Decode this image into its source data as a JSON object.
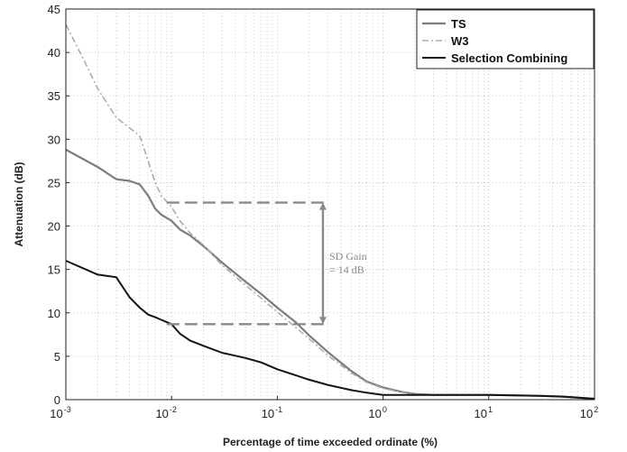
{
  "chart_data": {
    "type": "line",
    "xlabel": "Percentage of time exceeded ordinate (%)",
    "ylabel": "Attenuation (dB)",
    "xscale": "log",
    "xlim": [
      0.001,
      100
    ],
    "ylim": [
      0,
      45
    ],
    "grid": true,
    "legend_position": "top-right",
    "x_ticks": [
      {
        "base": "10",
        "exp": "-3"
      },
      {
        "base": "10",
        "exp": "-2"
      },
      {
        "base": "10",
        "exp": "-1"
      },
      {
        "base": "10",
        "exp": "0"
      },
      {
        "base": "10",
        "exp": "1"
      },
      {
        "base": "10",
        "exp": "2"
      }
    ],
    "y_ticks": [
      "0",
      "5",
      "10",
      "15",
      "20",
      "25",
      "30",
      "35",
      "40",
      "45"
    ],
    "series": [
      {
        "name": "TS",
        "color": "#7d7d7d",
        "style": "solid",
        "points": [
          [
            0.001,
            28.8
          ],
          [
            0.002,
            26.8
          ],
          [
            0.003,
            25.4
          ],
          [
            0.004,
            25.2
          ],
          [
            0.005,
            24.8
          ],
          [
            0.006,
            23.5
          ],
          [
            0.007,
            22.0
          ],
          [
            0.008,
            21.3
          ],
          [
            0.01,
            20.6
          ],
          [
            0.012,
            19.6
          ],
          [
            0.015,
            18.9
          ],
          [
            0.02,
            17.7
          ],
          [
            0.03,
            15.8
          ],
          [
            0.05,
            13.6
          ],
          [
            0.07,
            12.2
          ],
          [
            0.1,
            10.6
          ],
          [
            0.15,
            8.9
          ],
          [
            0.2,
            7.4
          ],
          [
            0.3,
            5.5
          ],
          [
            0.5,
            3.3
          ],
          [
            0.7,
            2.1
          ],
          [
            1.0,
            1.4
          ],
          [
            1.5,
            0.9
          ],
          [
            2.0,
            0.65
          ],
          [
            3.0,
            0.55
          ],
          [
            10,
            0.55
          ],
          [
            30,
            0.45
          ],
          [
            50,
            0.35
          ],
          [
            100,
            0.1
          ]
        ]
      },
      {
        "name": "W3",
        "color": "#adadad",
        "style": "dashdot",
        "points": [
          [
            0.001,
            43.2
          ],
          [
            0.0015,
            39.0
          ],
          [
            0.002,
            35.8
          ],
          [
            0.003,
            32.5
          ],
          [
            0.004,
            31.3
          ],
          [
            0.005,
            30.4
          ],
          [
            0.006,
            27.5
          ],
          [
            0.007,
            25.0
          ],
          [
            0.008,
            23.5
          ],
          [
            0.01,
            22.2
          ],
          [
            0.012,
            20.6
          ],
          [
            0.015,
            19.2
          ],
          [
            0.02,
            17.8
          ],
          [
            0.03,
            15.5
          ],
          [
            0.05,
            13.2
          ],
          [
            0.07,
            11.7
          ],
          [
            0.1,
            10.1
          ],
          [
            0.15,
            8.3
          ],
          [
            0.2,
            7.0
          ],
          [
            0.3,
            5.1
          ],
          [
            0.5,
            3.1
          ],
          [
            0.7,
            2.0
          ],
          [
            1.0,
            1.3
          ],
          [
            1.5,
            0.85
          ],
          [
            2.0,
            0.6
          ],
          [
            3.0,
            0.55
          ],
          [
            10,
            0.55
          ],
          [
            30,
            0.45
          ],
          [
            50,
            0.35
          ],
          [
            100,
            0.1
          ]
        ]
      },
      {
        "name": "Selection Combining",
        "color": "#141414",
        "style": "solid",
        "points": [
          [
            0.001,
            16.0
          ],
          [
            0.002,
            14.4
          ],
          [
            0.003,
            14.1
          ],
          [
            0.004,
            11.8
          ],
          [
            0.005,
            10.6
          ],
          [
            0.006,
            9.8
          ],
          [
            0.007,
            9.5
          ],
          [
            0.008,
            9.2
          ],
          [
            0.01,
            8.7
          ],
          [
            0.012,
            7.6
          ],
          [
            0.015,
            6.8
          ],
          [
            0.02,
            6.2
          ],
          [
            0.03,
            5.4
          ],
          [
            0.05,
            4.8
          ],
          [
            0.07,
            4.3
          ],
          [
            0.1,
            3.5
          ],
          [
            0.15,
            2.8
          ],
          [
            0.2,
            2.3
          ],
          [
            0.3,
            1.7
          ],
          [
            0.5,
            1.1
          ],
          [
            0.7,
            0.8
          ],
          [
            1.0,
            0.55
          ],
          [
            10,
            0.55
          ],
          [
            30,
            0.45
          ],
          [
            50,
            0.35
          ],
          [
            100,
            0.1
          ]
        ]
      }
    ],
    "annotations": [
      {
        "type": "dashed-hline",
        "y": 22.7,
        "x_from": 0.009,
        "x_to": 0.27,
        "color": "#8a8a8a"
      },
      {
        "type": "dashed-hline",
        "y": 8.7,
        "x_from": 0.009,
        "x_to": 0.27,
        "color": "#8a8a8a"
      },
      {
        "type": "double-arrow",
        "x": 0.27,
        "y_from": 8.7,
        "y_to": 22.7,
        "color": "#8a8a8a"
      },
      {
        "type": "text",
        "lines": [
          "SD Gain",
          "= 14 dB"
        ],
        "x": 0.31,
        "y": 15.7
      }
    ]
  }
}
